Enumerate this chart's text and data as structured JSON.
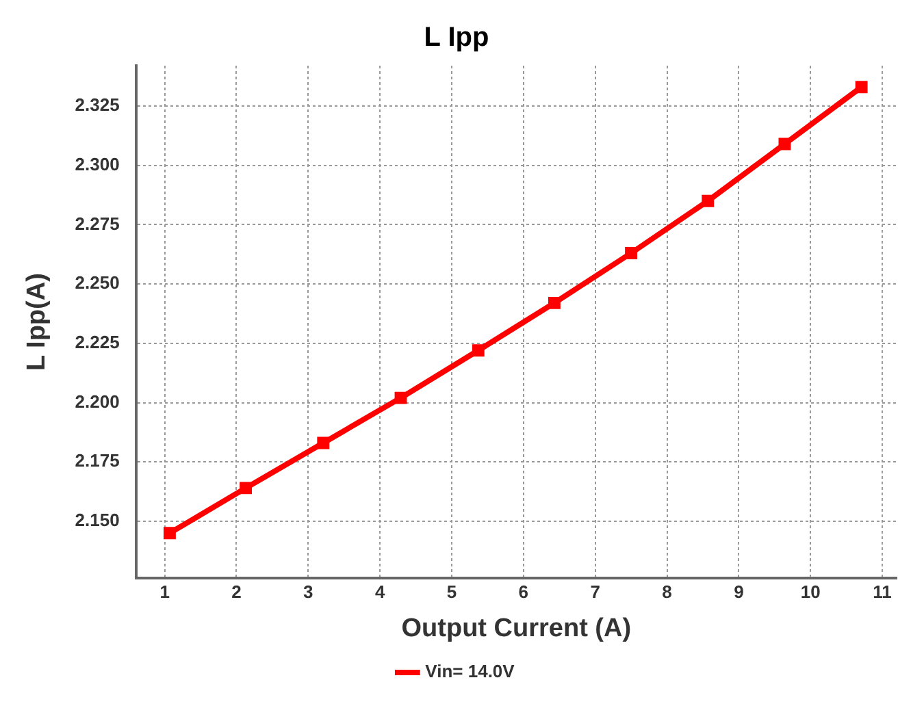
{
  "chart_data": {
    "type": "line",
    "title": "L Ipp",
    "xlabel": "Output Current (A)",
    "ylabel": "L Ipp(A)",
    "series": [
      {
        "name": "Vin= 14.0V",
        "color": "#ff0000",
        "x": [
          1.07,
          2.13,
          3.21,
          4.29,
          5.37,
          6.43,
          7.5,
          8.57,
          9.64,
          10.71
        ],
        "values": [
          2.145,
          2.164,
          2.183,
          2.202,
          2.222,
          2.242,
          2.263,
          2.285,
          2.309,
          2.333
        ]
      }
    ],
    "xlim": [
      0.6,
      11.2
    ],
    "xticks": [
      1,
      2,
      3,
      4,
      5,
      6,
      7,
      8,
      9,
      10,
      11
    ],
    "ylim": [
      2.126,
      2.342
    ],
    "yticks": [
      {
        "value": 2.15,
        "label": "2.150"
      },
      {
        "value": 2.175,
        "label": "2.175"
      },
      {
        "value": 2.2,
        "label": "2.200"
      },
      {
        "value": 2.225,
        "label": "2.225"
      },
      {
        "value": 2.25,
        "label": "2.250"
      },
      {
        "value": 2.275,
        "label": "2.275"
      },
      {
        "value": 2.3,
        "label": "2.300"
      },
      {
        "value": 2.325,
        "label": "2.325"
      }
    ],
    "grid": true,
    "legend": "bottom",
    "marker": "square",
    "line_style": "solid"
  }
}
